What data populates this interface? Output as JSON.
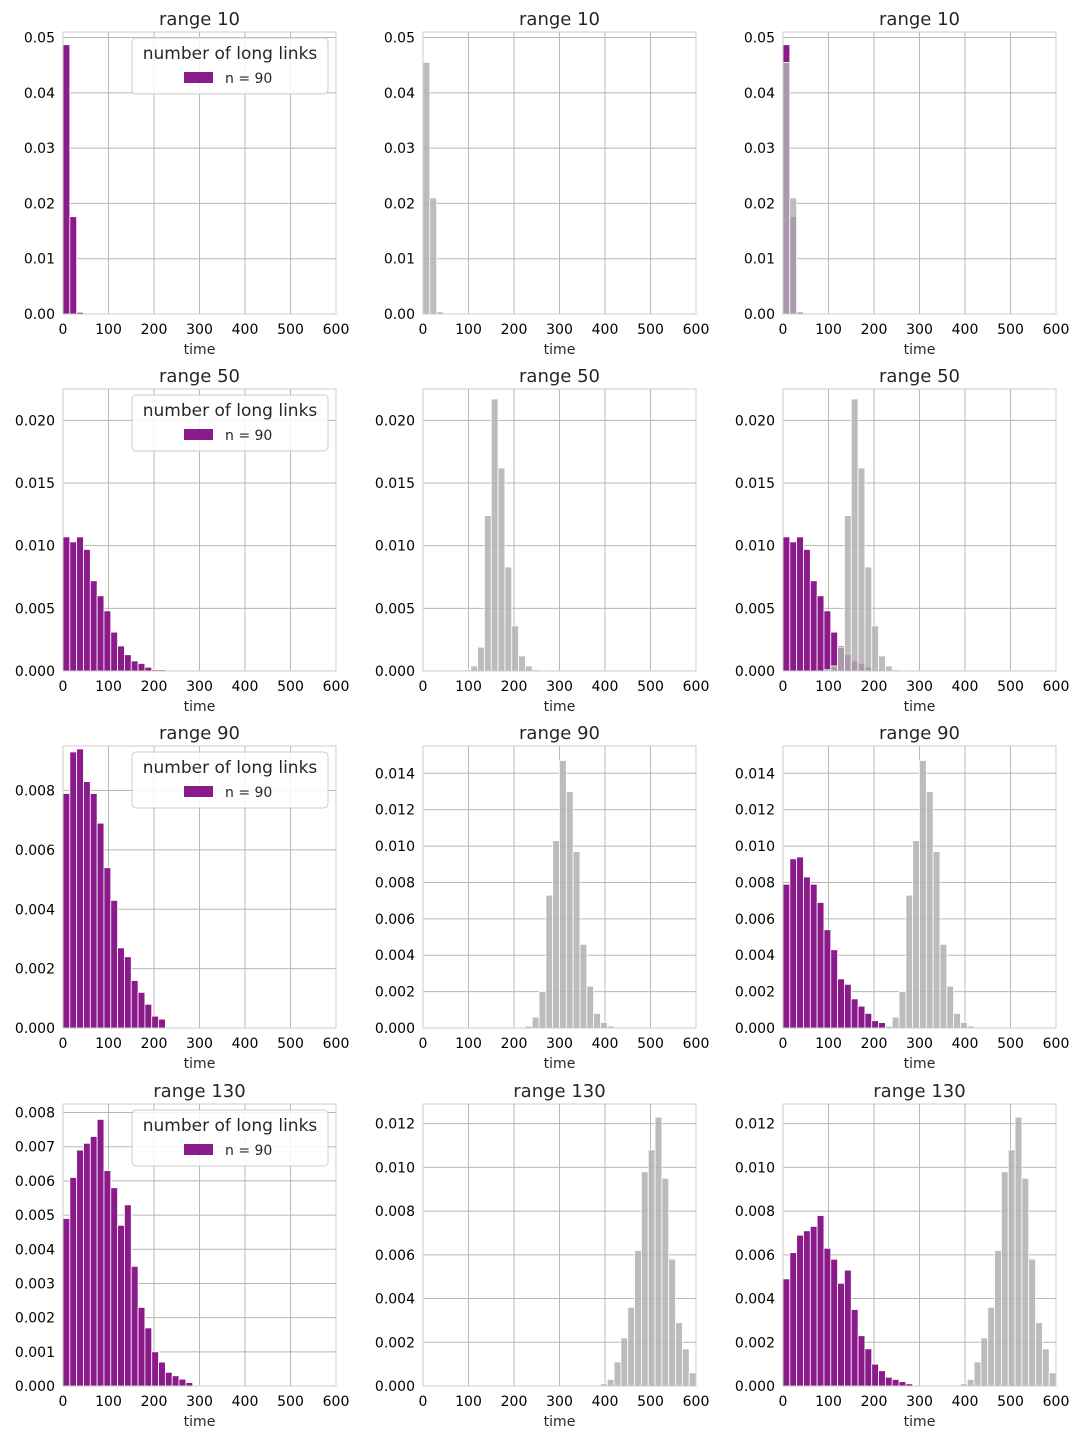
{
  "chart_data": {
    "type": "bar",
    "layout": "4x3 grid of histograms",
    "xlabel": "time",
    "xlim": [
      0,
      600
    ],
    "xticks": [
      0,
      100,
      200,
      300,
      400,
      500,
      600
    ],
    "bin_width": 15,
    "grid": true,
    "colors": {
      "purple": "#8b1a8b",
      "gray": "#b0b0b0"
    },
    "legend": {
      "title": "number of long links",
      "label": "n = 90",
      "placement": "top-right"
    },
    "rows": [
      {
        "title": "range 10",
        "ylim": [
          0,
          0.051
        ],
        "yticks": [
          "0.00",
          "0.01",
          "0.02",
          "0.03",
          "0.04",
          "0.05"
        ],
        "ytick_values": [
          0,
          0.01,
          0.02,
          0.03,
          0.04,
          0.05
        ],
        "purple": {
          "start": 0,
          "values": [
            0.0487,
            0.0176,
            0.0003
          ]
        },
        "gray": {
          "start": 0,
          "values": [
            0.0455,
            0.021,
            0.0004
          ]
        }
      },
      {
        "title": "range 50",
        "ylim": [
          0,
          0.0225
        ],
        "yticks": [
          "0.000",
          "0.005",
          "0.010",
          "0.015",
          "0.020"
        ],
        "ytick_values": [
          0,
          0.005,
          0.01,
          0.015,
          0.02
        ],
        "purple": {
          "start": 0,
          "values": [
            0.0107,
            0.0103,
            0.0107,
            0.0097,
            0.0072,
            0.006,
            0.0048,
            0.0031,
            0.002,
            0.0013,
            0.0008,
            0.0006,
            0.0003,
            0.0001,
            0.0001
          ]
        },
        "gray": {
          "start": 90,
          "values": [
            0.0001,
            0.0004,
            0.0019,
            0.0124,
            0.0217,
            0.0162,
            0.0083,
            0.0036,
            0.0012,
            0.0004,
            0.0001
          ]
        }
      },
      {
        "title": "range 90",
        "ylim": [
          0,
          0.0095
        ],
        "yticks": [
          "0.000",
          "0.002",
          "0.004",
          "0.006",
          "0.008"
        ],
        "ytick_values": [
          0,
          0.002,
          0.004,
          0.006,
          0.008
        ],
        "ylim_gray": [
          0,
          0.0155
        ],
        "yticks_gray": [
          "0.000",
          "0.002",
          "0.004",
          "0.006",
          "0.008",
          "0.010",
          "0.012",
          "0.014"
        ],
        "ytick_values_gray": [
          0,
          0.002,
          0.004,
          0.006,
          0.008,
          0.01,
          0.012,
          0.014
        ],
        "purple": {
          "start": 0,
          "values": [
            0.0079,
            0.0093,
            0.0094,
            0.0083,
            0.0079,
            0.0069,
            0.0054,
            0.0043,
            0.0027,
            0.0024,
            0.0016,
            0.0012,
            0.0008,
            0.0004,
            0.0003
          ]
        },
        "gray": {
          "start": 225,
          "values": [
            0.0001,
            0.0006,
            0.002,
            0.0073,
            0.0103,
            0.0147,
            0.013,
            0.0097,
            0.0046,
            0.0023,
            0.0008,
            0.0003,
            0.0001
          ]
        }
      },
      {
        "title": "range 130",
        "ylim": [
          0,
          0.00825
        ],
        "yticks": [
          "0.000",
          "0.001",
          "0.002",
          "0.003",
          "0.004",
          "0.005",
          "0.006",
          "0.007",
          "0.008"
        ],
        "ytick_values": [
          0,
          0.001,
          0.002,
          0.003,
          0.004,
          0.005,
          0.006,
          0.007,
          0.008
        ],
        "ylim_gray": [
          0,
          0.0129
        ],
        "yticks_gray": [
          "0.000",
          "0.002",
          "0.004",
          "0.006",
          "0.008",
          "0.010",
          "0.012"
        ],
        "ytick_values_gray": [
          0,
          0.002,
          0.004,
          0.006,
          0.008,
          0.01,
          0.012
        ],
        "purple": {
          "start": 0,
          "values": [
            0.0049,
            0.0061,
            0.0069,
            0.0071,
            0.0073,
            0.0078,
            0.0063,
            0.0058,
            0.0047,
            0.0053,
            0.0035,
            0.0023,
            0.0017,
            0.001,
            0.0007,
            0.0004,
            0.0003,
            0.0002,
            0.0001
          ]
        },
        "gray": {
          "start": 390,
          "values": [
            0.0001,
            0.0003,
            0.0011,
            0.0022,
            0.0036,
            0.0062,
            0.0098,
            0.0108,
            0.0123,
            0.0095,
            0.0058,
            0.0029,
            0.0017,
            0.0006
          ]
        }
      }
    ]
  }
}
